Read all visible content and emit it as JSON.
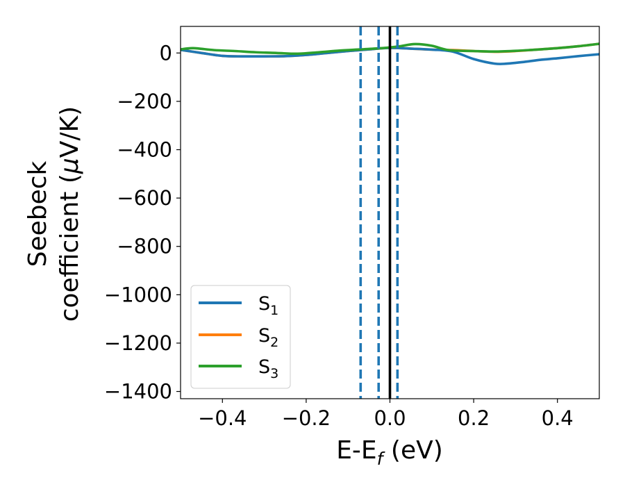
{
  "chart_data": {
    "type": "line",
    "title": "",
    "xlabel": "E-E$_f$ (eV)",
    "xlabel_parts": {
      "main": "E-E",
      "sub": "f",
      "tail": " (eV)"
    },
    "ylabel_line1": "Seebeck",
    "ylabel_line2_prefix": "coefficient  (",
    "ylabel_mu": "μ",
    "ylabel_line2_suffix": "V/K)",
    "xlim": [
      -0.5,
      0.5
    ],
    "ylim": [
      -1430,
      110
    ],
    "xticks": [
      -0.4,
      -0.2,
      0.0,
      0.2,
      0.4
    ],
    "xtick_labels": [
      "−0.4",
      "−0.2",
      "0.0",
      "0.2",
      "0.4"
    ],
    "yticks": [
      0,
      -200,
      -400,
      -600,
      -800,
      -1000,
      -1200,
      -1400
    ],
    "ytick_labels": [
      "0",
      "−200",
      "−400",
      "−600",
      "−800",
      "−1000",
      "−1200",
      "−1400"
    ],
    "legend_position": "lower-left",
    "series": [
      {
        "name": "S1",
        "label_main": "S",
        "label_sub": "1",
        "color": "#1f77b4",
        "x": [
          -0.5,
          -0.45,
          -0.4,
          -0.35,
          -0.3,
          -0.25,
          -0.2,
          -0.15,
          -0.1,
          -0.05,
          0.0,
          0.05,
          0.1,
          0.15,
          0.2,
          0.25,
          0.28,
          0.32,
          0.36,
          0.4,
          0.45,
          0.5
        ],
        "y": [
          13,
          0,
          -12,
          -14,
          -14,
          -13,
          -8,
          0,
          8,
          15,
          21,
          18,
          14,
          6,
          -25,
          -44,
          -44,
          -37,
          -28,
          -22,
          -13,
          -5
        ]
      },
      {
        "name": "S2",
        "label_main": "S",
        "label_sub": "2",
        "color": "#ff7f0e",
        "x": [
          -0.5,
          -0.45,
          -0.4,
          -0.35,
          -0.3,
          -0.25,
          -0.2,
          -0.15,
          -0.1,
          -0.05,
          0.0,
          0.05,
          0.1,
          0.15,
          0.2,
          0.25,
          0.3,
          0.35,
          0.4,
          0.45,
          0.5
        ],
        "y": [
          13,
          0,
          -12,
          -14,
          -14,
          -13,
          -8,
          0,
          8,
          15,
          21,
          18,
          14,
          12,
          8,
          5,
          8,
          14,
          20,
          28,
          38
        ]
      },
      {
        "name": "S3",
        "label_main": "S",
        "label_sub": "3",
        "color": "#2ca02c",
        "x": [
          -0.5,
          -0.47,
          -0.42,
          -0.37,
          -0.32,
          -0.27,
          -0.22,
          -0.17,
          -0.12,
          -0.07,
          -0.02,
          0.02,
          0.06,
          0.1,
          0.14,
          0.2,
          0.25,
          0.3,
          0.35,
          0.4,
          0.45,
          0.5
        ],
        "y": [
          15,
          20,
          12,
          8,
          3,
          0,
          -3,
          3,
          10,
          15,
          20,
          27,
          37,
          30,
          12,
          8,
          6,
          9,
          14,
          20,
          28,
          38
        ]
      }
    ],
    "vlines": [
      {
        "x": -0.07,
        "style": "dashed",
        "color": "#1f77b4"
      },
      {
        "x": -0.027,
        "style": "dashed",
        "color": "#1f77b4"
      },
      {
        "x": 0.018,
        "style": "dashed",
        "color": "#1f77b4"
      },
      {
        "x": 0.0,
        "style": "solid",
        "color": "#000000"
      }
    ]
  }
}
